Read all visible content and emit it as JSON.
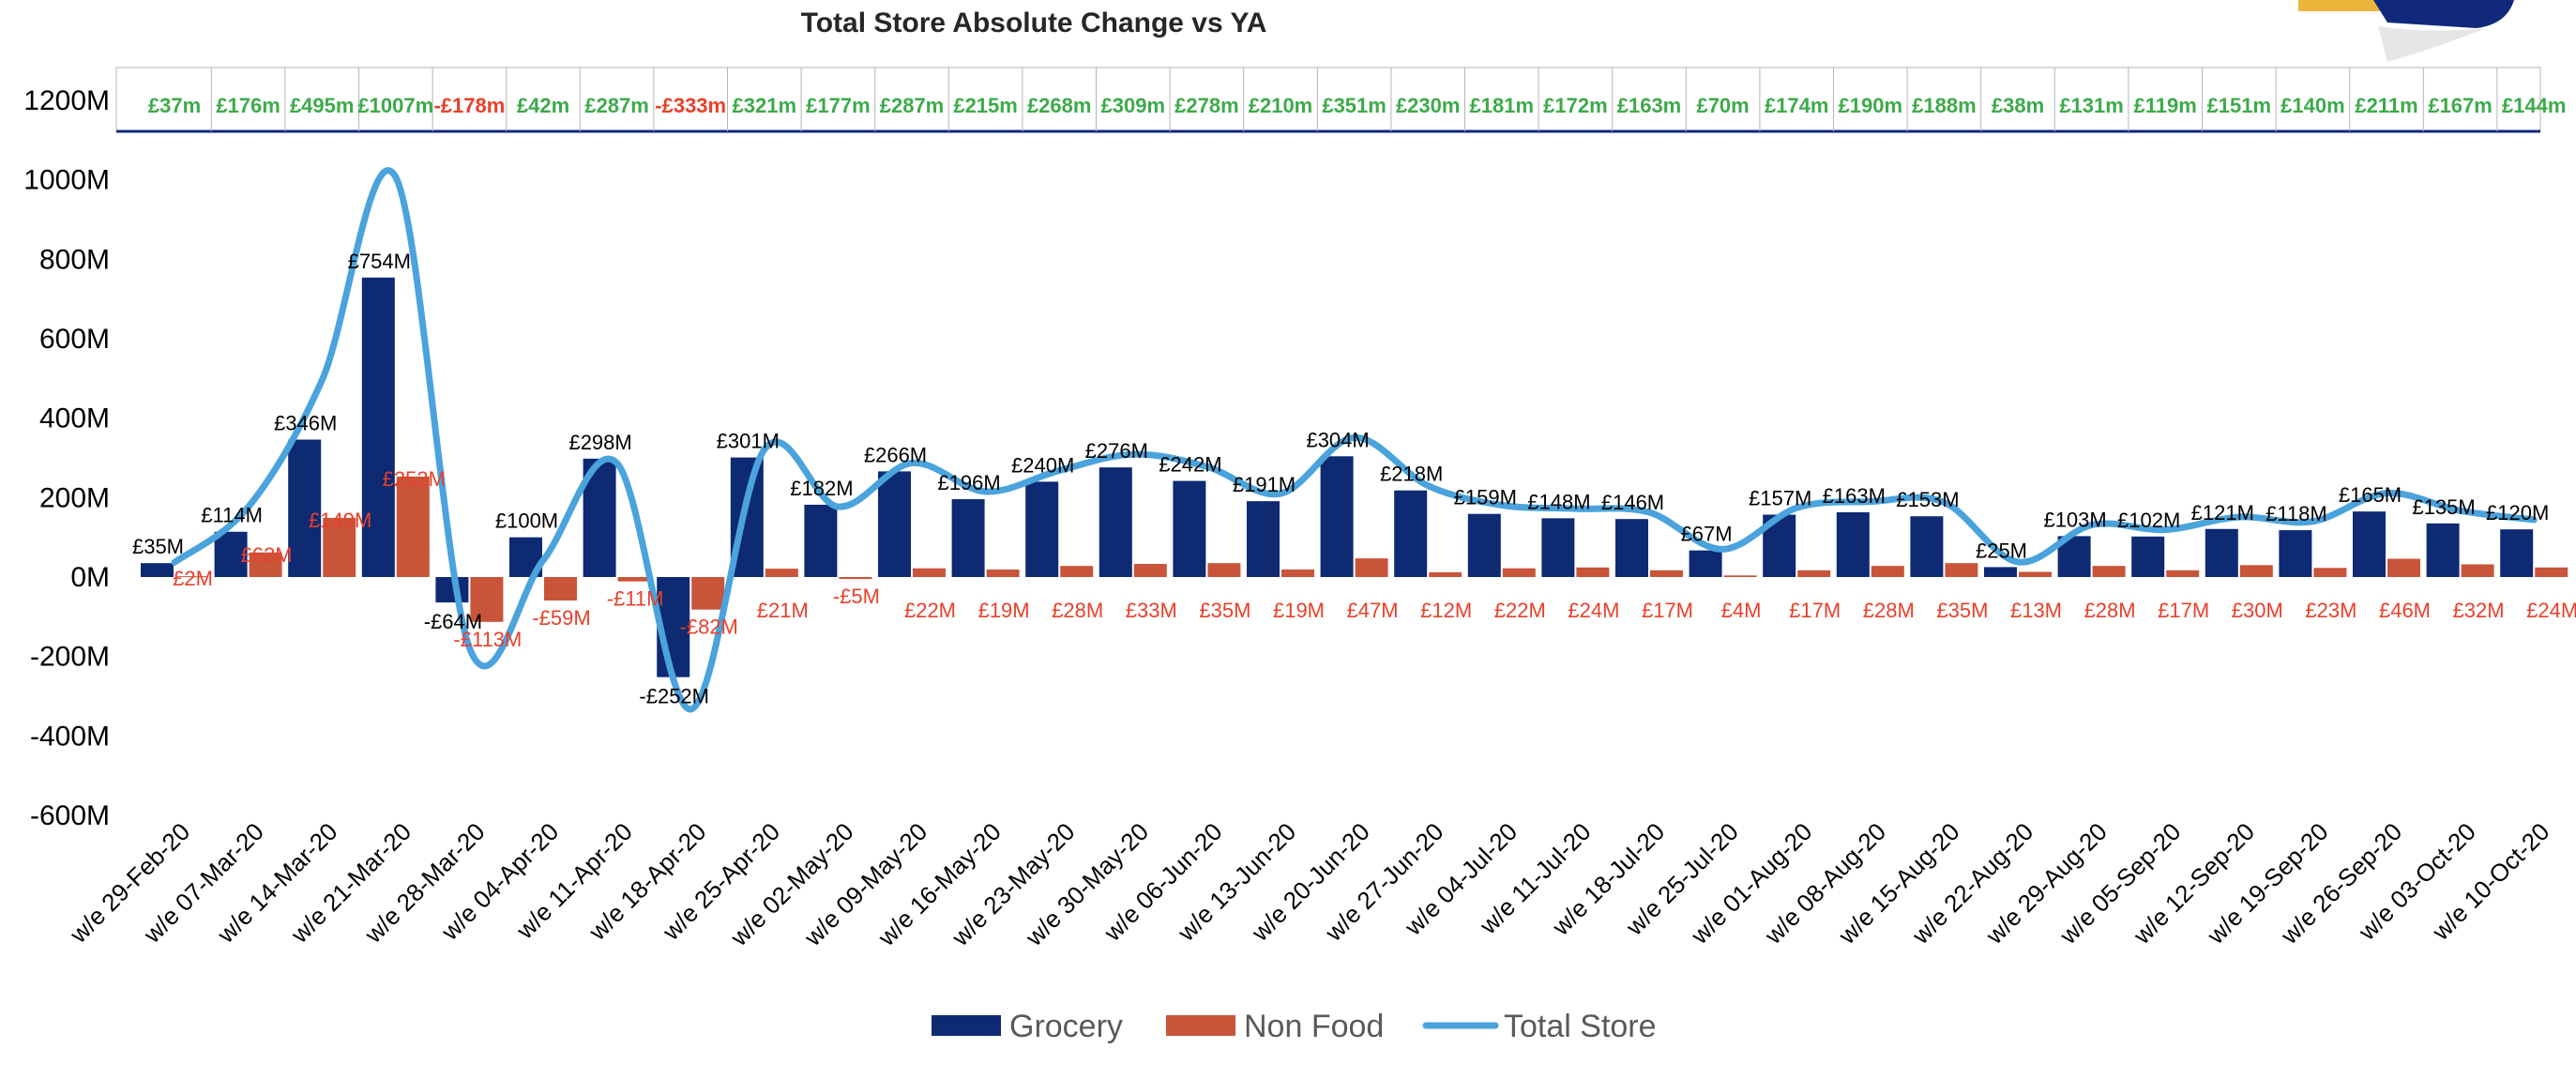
{
  "chart_data": {
    "type": "bar",
    "title": "Total Store Absolute Change vs YA",
    "ylabel": "",
    "xlabel": "",
    "ylim": [
      -600,
      1200
    ],
    "yticks": [
      "1200M",
      "1000M",
      "800M",
      "600M",
      "400M",
      "200M",
      "0M",
      "-200M",
      "-400M",
      "-600M"
    ],
    "ytick_values": [
      1200,
      1000,
      800,
      600,
      400,
      200,
      0,
      -200,
      -400,
      -600
    ],
    "categories": [
      "w/e 29-Feb-20",
      "w/e 07-Mar-20",
      "w/e 14-Mar-20",
      "w/e 21-Mar-20",
      "w/e 28-Mar-20",
      "w/e 04-Apr-20",
      "w/e 11-Apr-20",
      "w/e 18-Apr-20",
      "w/e 25-Apr-20",
      "w/e 02-May-20",
      "w/e 09-May-20",
      "w/e 16-May-20",
      "w/e 23-May-20",
      "w/e 30-May-20",
      "w/e 06-Jun-20",
      "w/e 13-Jun-20",
      "w/e 20-Jun-20",
      "w/e 27-Jun-20",
      "w/e 04-Jul-20",
      "w/e 11-Jul-20",
      "w/e 18-Jul-20",
      "w/e 25-Jul-20",
      "w/e 01-Aug-20",
      "w/e 08-Aug-20",
      "w/e 15-Aug-20",
      "w/e 22-Aug-20",
      "w/e 29-Aug-20",
      "w/e 05-Sep-20",
      "w/e 12-Sep-20",
      "w/e 19-Sep-20",
      "w/e 26-Sep-20",
      "w/e 03-Oct-20",
      "w/e 10-Oct-20"
    ],
    "series": [
      {
        "name": "Grocery",
        "type": "bar",
        "color": "#0d2a73",
        "values": [
          35,
          114,
          346,
          754,
          -64,
          100,
          298,
          -252,
          301,
          182,
          266,
          196,
          240,
          276,
          242,
          191,
          304,
          218,
          159,
          148,
          146,
          67,
          157,
          163,
          153,
          25,
          103,
          102,
          121,
          118,
          165,
          135,
          120
        ],
        "labels": [
          "£35M",
          "£114M",
          "£346M",
          "£754M",
          "-£64M",
          "£100M",
          "£298M",
          "-£252M",
          "£301M",
          "£182M",
          "£266M",
          "£196M",
          "£240M",
          "£276M",
          "£242M",
          "£191M",
          "£304M",
          "£218M",
          "£159M",
          "£148M",
          "£146M",
          "£67M",
          "£157M",
          "£163M",
          "£153M",
          "£25M",
          "£103M",
          "£102M",
          "£121M",
          "£118M",
          "£165M",
          "£135M",
          "£120M"
        ]
      },
      {
        "name": "Non Food",
        "type": "bar",
        "color": "#c8553a",
        "values": [
          2,
          62,
          149,
          253,
          -113,
          -59,
          -11,
          -82,
          21,
          -5,
          22,
          19,
          28,
          33,
          35,
          19,
          47,
          12,
          22,
          24,
          17,
          4,
          17,
          28,
          35,
          13,
          28,
          17,
          30,
          23,
          46,
          32,
          24
        ],
        "labels": [
          "£2M",
          "£62M",
          "£149M",
          "£253M",
          "-£113M",
          "-£59M",
          "-£11M",
          "-£82M",
          "£21M",
          "-£5M",
          "£22M",
          "£19M",
          "£28M",
          "£33M",
          "£35M",
          "£19M",
          "£47M",
          "£12M",
          "£22M",
          "£24M",
          "£17M",
          "£4M",
          "£17M",
          "£28M",
          "£35M",
          "£13M",
          "£28M",
          "£17M",
          "£30M",
          "£23M",
          "£46M",
          "£32M",
          "£24M"
        ]
      },
      {
        "name": "Total Store",
        "type": "line",
        "color": "#4aa3dc",
        "values": [
          37,
          176,
          495,
          1007,
          -178,
          42,
          287,
          -333,
          321,
          177,
          287,
          215,
          268,
          309,
          278,
          210,
          351,
          230,
          181,
          172,
          163,
          70,
          174,
          190,
          188,
          38,
          131,
          119,
          151,
          140,
          211,
          167,
          144
        ],
        "labels": [
          "£37m",
          "£176m",
          "£495m",
          "£1007m",
          "-£178m",
          "£42m",
          "£287m",
          "-£333m",
          "£321m",
          "£177m",
          "£287m",
          "£215m",
          "£268m",
          "£309m",
          "£278m",
          "£210m",
          "£351m",
          "£230m",
          "£181m",
          "£172m",
          "£163m",
          "£70m",
          "£174m",
          "£190m",
          "£188m",
          "£38m",
          "£131m",
          "£119m",
          "£151m",
          "£140m",
          "£211m",
          "£167m",
          "£144m"
        ]
      }
    ],
    "legend": "bottom",
    "grid": false
  },
  "colors": {
    "positive_total": "#3daa4a",
    "negative_total": "#e8402a",
    "logo_blue": "#10297a",
    "logo_gold": "#e9b53b"
  }
}
